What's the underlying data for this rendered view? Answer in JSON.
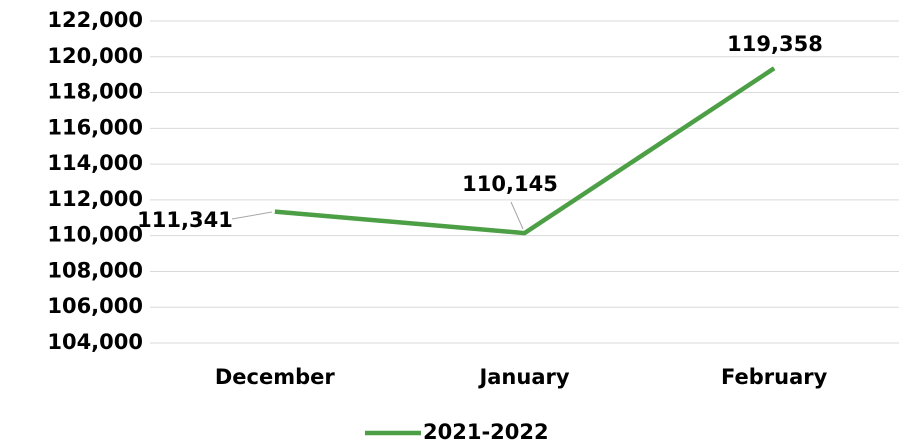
{
  "chart_data": {
    "type": "line",
    "categories": [
      "December",
      "January",
      "February"
    ],
    "series": [
      {
        "name": "2021-2022",
        "color": "#4c9f45",
        "values": [
          111341,
          110145,
          119358
        ],
        "value_labels": [
          "111,341",
          "110,145",
          "119,358"
        ]
      }
    ],
    "ylim": [
      104000,
      122000
    ],
    "yticks": [
      {
        "value": 104000,
        "label": "104,000"
      },
      {
        "value": 106000,
        "label": "106,000"
      },
      {
        "value": 108000,
        "label": "108,000"
      },
      {
        "value": 110000,
        "label": "110,000"
      },
      {
        "value": 112000,
        "label": "112,000"
      },
      {
        "value": 114000,
        "label": "114,000"
      },
      {
        "value": 116000,
        "label": "116,000"
      },
      {
        "value": 118000,
        "label": "118,000"
      },
      {
        "value": 120000,
        "label": "120,000"
      },
      {
        "value": 122000,
        "label": "122,000"
      }
    ],
    "grid": true,
    "legend": "bottom"
  }
}
